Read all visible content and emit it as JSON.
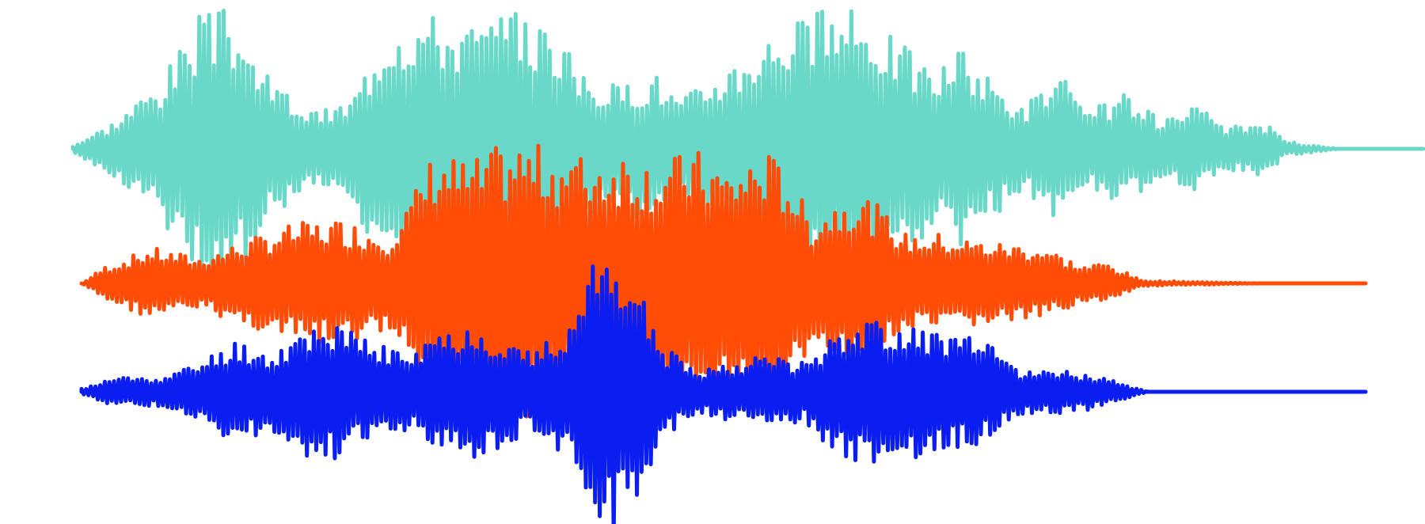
{
  "waveforms": [
    {
      "id": "teal",
      "color": "#69d8c8",
      "envelope": [
        [
          0,
          0.02
        ],
        [
          0.03,
          0.18
        ],
        [
          0.07,
          0.5
        ],
        [
          0.1,
          0.95
        ],
        [
          0.125,
          1.0
        ],
        [
          0.15,
          0.55
        ],
        [
          0.19,
          0.25
        ],
        [
          0.22,
          0.35
        ],
        [
          0.25,
          0.95
        ],
        [
          0.28,
          0.98
        ],
        [
          0.31,
          0.9
        ],
        [
          0.35,
          0.95
        ],
        [
          0.38,
          0.9
        ],
        [
          0.4,
          0.55
        ],
        [
          0.43,
          0.45
        ],
        [
          0.46,
          0.55
        ],
        [
          0.48,
          0.35
        ],
        [
          0.51,
          0.55
        ],
        [
          0.56,
          0.9
        ],
        [
          0.6,
          1.0
        ],
        [
          0.63,
          0.95
        ],
        [
          0.66,
          0.72
        ],
        [
          0.68,
          0.55
        ],
        [
          0.7,
          0.72
        ],
        [
          0.72,
          0.55
        ],
        [
          0.75,
          0.3
        ],
        [
          0.78,
          0.55
        ],
        [
          0.8,
          0.25
        ],
        [
          0.83,
          0.4
        ],
        [
          0.86,
          0.2
        ],
        [
          0.89,
          0.3
        ],
        [
          0.91,
          0.15
        ],
        [
          0.94,
          0.2
        ],
        [
          0.96,
          0.05
        ],
        [
          1.0,
          0.0
        ]
      ]
    },
    {
      "id": "orange",
      "color": "#ff4c06",
      "envelope": [
        [
          0,
          0.0
        ],
        [
          0.02,
          0.12
        ],
        [
          0.06,
          0.25
        ],
        [
          0.1,
          0.18
        ],
        [
          0.14,
          0.3
        ],
        [
          0.18,
          0.42
        ],
        [
          0.22,
          0.45
        ],
        [
          0.26,
          0.35
        ],
        [
          0.28,
          0.6
        ],
        [
          0.3,
          0.95
        ],
        [
          0.33,
          0.85
        ],
        [
          0.35,
          0.95
        ],
        [
          0.37,
          1.0
        ],
        [
          0.4,
          0.95
        ],
        [
          0.43,
          0.9
        ],
        [
          0.46,
          0.95
        ],
        [
          0.49,
          0.85
        ],
        [
          0.52,
          0.95
        ],
        [
          0.55,
          0.8
        ],
        [
          0.58,
          0.95
        ],
        [
          0.6,
          0.8
        ],
        [
          0.62,
          0.45
        ],
        [
          0.65,
          0.65
        ],
        [
          0.67,
          0.6
        ],
        [
          0.7,
          0.35
        ],
        [
          0.73,
          0.35
        ],
        [
          0.76,
          0.3
        ],
        [
          0.79,
          0.28
        ],
        [
          0.82,
          0.25
        ],
        [
          0.85,
          0.12
        ],
        [
          0.87,
          0.15
        ],
        [
          0.9,
          0.02
        ],
        [
          1.0,
          0.0
        ]
      ]
    },
    {
      "id": "blue",
      "color": "#0a1ef2",
      "envelope": [
        [
          0,
          0.02
        ],
        [
          0.03,
          0.1
        ],
        [
          0.07,
          0.1
        ],
        [
          0.1,
          0.2
        ],
        [
          0.13,
          0.35
        ],
        [
          0.16,
          0.25
        ],
        [
          0.2,
          0.5
        ],
        [
          0.24,
          0.35
        ],
        [
          0.28,
          0.25
        ],
        [
          0.3,
          0.4
        ],
        [
          0.33,
          0.45
        ],
        [
          0.36,
          0.35
        ],
        [
          0.38,
          0.25
        ],
        [
          0.41,
          0.45
        ],
        [
          0.43,
          0.85
        ],
        [
          0.45,
          1.0
        ],
        [
          0.47,
          0.7
        ],
        [
          0.49,
          0.3
        ],
        [
          0.52,
          0.15
        ],
        [
          0.55,
          0.2
        ],
        [
          0.58,
          0.25
        ],
        [
          0.61,
          0.2
        ],
        [
          0.64,
          0.45
        ],
        [
          0.67,
          0.48
        ],
        [
          0.7,
          0.45
        ],
        [
          0.73,
          0.4
        ],
        [
          0.76,
          0.35
        ],
        [
          0.79,
          0.15
        ],
        [
          0.82,
          0.15
        ],
        [
          0.85,
          0.12
        ],
        [
          0.88,
          0.05
        ],
        [
          0.9,
          0.0
        ],
        [
          1.0,
          0.0
        ]
      ]
    }
  ]
}
